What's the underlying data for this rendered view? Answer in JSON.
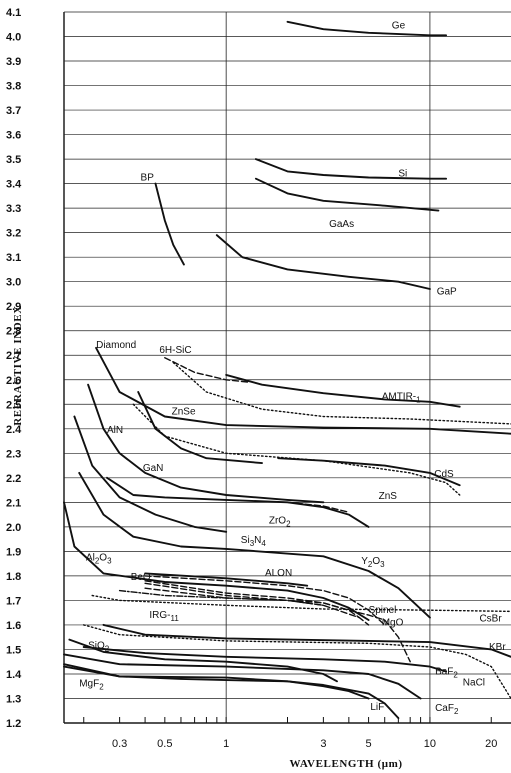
{
  "chart_data": {
    "type": "line",
    "title": "",
    "xlabel": "WAVELENGTH   (μm)",
    "ylabel": "REFRACTIVE   INDEX",
    "xscale": "log",
    "xlim": [
      0.16,
      25
    ],
    "ylim": [
      1.2,
      4.1
    ],
    "grid": "horizontal lines every 0.1, vertical lines at 1 and 10",
    "x_ticks": [
      {
        "value": 0.3,
        "label": "0.3"
      },
      {
        "value": 0.5,
        "label": "0.5"
      },
      {
        "value": 1,
        "label": "1"
      },
      {
        "value": 3,
        "label": "3"
      },
      {
        "value": 5,
        "label": "5"
      },
      {
        "value": 10,
        "label": "10"
      },
      {
        "value": 20,
        "label": "20"
      }
    ],
    "y_ticks": [
      "1.2",
      "1.3",
      "1.4",
      "1.5",
      "1.6",
      "1.7",
      "1.8",
      "1.9",
      "2.0",
      "2.1",
      "2.2",
      "2.3",
      "2.4",
      "2.5",
      "2.6",
      "2.7",
      "2.8",
      "2.9",
      "3.0",
      "3.1",
      "3.2",
      "3.3",
      "3.4",
      "3.5",
      "3.6",
      "3.7",
      "3.8",
      "3.9",
      "4.0",
      "4.1"
    ],
    "series": [
      {
        "name": "Ge",
        "style": "solid",
        "points": [
          [
            2,
            4.06
          ],
          [
            3,
            4.03
          ],
          [
            5,
            4.015
          ],
          [
            10,
            4.005
          ],
          [
            12,
            4.005
          ]
        ]
      },
      {
        "name": "Si",
        "style": "solid",
        "points": [
          [
            1.4,
            3.5
          ],
          [
            2,
            3.45
          ],
          [
            3,
            3.435
          ],
          [
            5,
            3.425
          ],
          [
            10,
            3.42
          ],
          [
            12,
            3.42
          ]
        ]
      },
      {
        "name": "GaAs",
        "style": "solid",
        "points": [
          [
            1.4,
            3.42
          ],
          [
            2,
            3.36
          ],
          [
            3,
            3.33
          ],
          [
            6,
            3.31
          ],
          [
            11,
            3.29
          ]
        ]
      },
      {
        "name": "BP",
        "style": "solid",
        "points": [
          [
            0.45,
            3.4
          ],
          [
            0.5,
            3.25
          ],
          [
            0.55,
            3.15
          ],
          [
            0.62,
            3.07
          ]
        ]
      },
      {
        "name": "GaP",
        "style": "solid",
        "points": [
          [
            0.9,
            3.19
          ],
          [
            1.2,
            3.1
          ],
          [
            2,
            3.05
          ],
          [
            4,
            3.02
          ],
          [
            7,
            3.0
          ],
          [
            10,
            2.97
          ]
        ]
      },
      {
        "name": "Diamond",
        "style": "solid",
        "points": [
          [
            0.23,
            2.73
          ],
          [
            0.3,
            2.55
          ],
          [
            0.5,
            2.45
          ],
          [
            1,
            2.415
          ],
          [
            3,
            2.405
          ],
          [
            10,
            2.4
          ],
          [
            25,
            2.38
          ]
        ]
      },
      {
        "name": "6H-SiC",
        "style": "dashed",
        "points": [
          [
            0.5,
            2.69
          ],
          [
            0.7,
            2.63
          ],
          [
            1,
            2.6
          ],
          [
            1.3,
            2.59
          ]
        ]
      },
      {
        "name": "ZnSe",
        "style": "dotted",
        "points": [
          [
            0.55,
            2.67
          ],
          [
            0.8,
            2.55
          ],
          [
            1.5,
            2.48
          ],
          [
            3,
            2.45
          ],
          [
            8,
            2.44
          ],
          [
            25,
            2.42
          ]
        ]
      },
      {
        "name": "AMTIR-1",
        "style": "solid",
        "points": [
          [
            1,
            2.62
          ],
          [
            1.5,
            2.58
          ],
          [
            3,
            2.545
          ],
          [
            6,
            2.52
          ],
          [
            10,
            2.51
          ],
          [
            14,
            2.49
          ]
        ]
      },
      {
        "name": "AlN",
        "style": "solid",
        "points": [
          [
            0.21,
            2.58
          ],
          [
            0.25,
            2.4
          ],
          [
            0.3,
            2.3
          ],
          [
            0.4,
            2.22
          ],
          [
            0.6,
            2.16
          ],
          [
            1,
            2.13
          ],
          [
            2,
            2.11
          ],
          [
            3,
            2.1
          ]
        ]
      },
      {
        "name": "GaN",
        "style": "solid",
        "points": [
          [
            0.37,
            2.55
          ],
          [
            0.45,
            2.4
          ],
          [
            0.6,
            2.32
          ],
          [
            0.8,
            2.28
          ],
          [
            1.5,
            2.26
          ]
        ]
      },
      {
        "name": "ZnS",
        "style": "dotted",
        "points": [
          [
            0.35,
            2.5
          ],
          [
            0.5,
            2.37
          ],
          [
            1,
            2.3
          ],
          [
            3,
            2.27
          ],
          [
            8,
            2.22
          ],
          [
            12,
            2.18
          ],
          [
            14,
            2.13
          ]
        ]
      },
      {
        "name": "CdS",
        "style": "solid",
        "points": [
          [
            1.8,
            2.28
          ],
          [
            3,
            2.27
          ],
          [
            6,
            2.25
          ],
          [
            10,
            2.22
          ],
          [
            14,
            2.17
          ]
        ]
      },
      {
        "name": "ZrO2",
        "style": "solid",
        "points": [
          [
            0.26,
            2.2
          ],
          [
            0.35,
            2.13
          ],
          [
            0.5,
            2.12
          ],
          [
            1,
            2.11
          ],
          [
            2,
            2.1
          ],
          [
            3,
            2.08
          ],
          [
            4,
            2.05
          ],
          [
            5,
            2.0
          ]
        ]
      },
      {
        "name": "ZrO2 (dashed)",
        "style": "dashed",
        "points": [
          [
            2,
            2.1
          ],
          [
            3,
            2.085
          ],
          [
            4,
            2.06
          ]
        ]
      },
      {
        "name": "Si3N4",
        "style": "solid",
        "points": [
          [
            0.18,
            2.45
          ],
          [
            0.22,
            2.25
          ],
          [
            0.3,
            2.12
          ],
          [
            0.45,
            2.05
          ],
          [
            0.7,
            2.0
          ],
          [
            1,
            1.98
          ]
        ]
      },
      {
        "name": "Y2O3",
        "style": "solid",
        "points": [
          [
            0.19,
            2.22
          ],
          [
            0.25,
            2.05
          ],
          [
            0.35,
            1.96
          ],
          [
            0.6,
            1.92
          ],
          [
            1,
            1.91
          ],
          [
            3,
            1.88
          ],
          [
            5,
            1.82
          ],
          [
            7,
            1.75
          ],
          [
            10,
            1.63
          ]
        ]
      },
      {
        "name": "Al2O3",
        "style": "solid",
        "points": [
          [
            0.16,
            2.1
          ],
          [
            0.18,
            1.92
          ],
          [
            0.25,
            1.81
          ],
          [
            0.5,
            1.775
          ],
          [
            1,
            1.76
          ],
          [
            2,
            1.74
          ],
          [
            3,
            1.71
          ],
          [
            4,
            1.67
          ],
          [
            5,
            1.62
          ]
        ]
      },
      {
        "name": "BeO",
        "style": "dashdot",
        "points": [
          [
            0.3,
            1.74
          ],
          [
            0.5,
            1.72
          ],
          [
            1,
            1.71
          ],
          [
            2,
            1.7
          ],
          [
            3,
            1.68
          ]
        ]
      },
      {
        "name": "ALON",
        "style": "solid",
        "points": [
          [
            0.4,
            1.81
          ],
          [
            1,
            1.79
          ],
          [
            2,
            1.77
          ],
          [
            2.5,
            1.76
          ]
        ]
      },
      {
        "name": "ALON (dashed)",
        "style": "dashed",
        "points": [
          [
            0.4,
            1.8
          ],
          [
            1,
            1.78
          ],
          [
            2,
            1.76
          ],
          [
            3,
            1.74
          ],
          [
            4,
            1.71
          ],
          [
            5,
            1.66
          ],
          [
            6,
            1.6
          ]
        ]
      },
      {
        "name": "Spinel",
        "style": "dashed",
        "points": [
          [
            0.4,
            1.75
          ],
          [
            1,
            1.71
          ],
          [
            2,
            1.7
          ],
          [
            3,
            1.68
          ],
          [
            4.5,
            1.63
          ],
          [
            5,
            1.6
          ]
        ]
      },
      {
        "name": "IRG-11",
        "style": "dashed",
        "points": [
          [
            0.4,
            1.77
          ],
          [
            1,
            1.72
          ],
          [
            2,
            1.7
          ],
          [
            3,
            1.69
          ],
          [
            4,
            1.66
          ],
          [
            4.5,
            1.63
          ]
        ]
      },
      {
        "name": "MgO",
        "style": "dashed",
        "points": [
          [
            0.4,
            1.78
          ],
          [
            1,
            1.73
          ],
          [
            2,
            1.71
          ],
          [
            3,
            1.69
          ],
          [
            4,
            1.66
          ],
          [
            5,
            1.64
          ],
          [
            6,
            1.62
          ],
          [
            7,
            1.55
          ],
          [
            8,
            1.45
          ]
        ]
      },
      {
        "name": "CsBr",
        "style": "dotted",
        "points": [
          [
            0.22,
            1.72
          ],
          [
            0.3,
            1.7
          ],
          [
            1,
            1.68
          ],
          [
            3,
            1.665
          ],
          [
            10,
            1.66
          ],
          [
            25,
            1.655
          ]
        ]
      },
      {
        "name": "KBr",
        "style": "solid",
        "points": [
          [
            0.25,
            1.6
          ],
          [
            0.4,
            1.56
          ],
          [
            1,
            1.545
          ],
          [
            5,
            1.535
          ],
          [
            10,
            1.53
          ],
          [
            20,
            1.5
          ],
          [
            25,
            1.47
          ]
        ]
      },
      {
        "name": "NaCl",
        "style": "dotted",
        "points": [
          [
            0.2,
            1.6
          ],
          [
            0.3,
            1.56
          ],
          [
            1,
            1.535
          ],
          [
            5,
            1.525
          ],
          [
            10,
            1.51
          ],
          [
            15,
            1.48
          ],
          [
            20,
            1.43
          ],
          [
            25,
            1.3
          ]
        ]
      },
      {
        "name": "SiO2",
        "style": "solid",
        "points": [
          [
            0.17,
            1.54
          ],
          [
            0.25,
            1.49
          ],
          [
            0.5,
            1.46
          ],
          [
            1,
            1.45
          ],
          [
            2,
            1.43
          ],
          [
            3,
            1.4
          ],
          [
            3.5,
            1.37
          ]
        ]
      },
      {
        "name": "BaF2",
        "style": "solid",
        "points": [
          [
            0.2,
            1.51
          ],
          [
            0.4,
            1.485
          ],
          [
            1,
            1.47
          ],
          [
            3,
            1.46
          ],
          [
            6,
            1.45
          ],
          [
            10,
            1.43
          ],
          [
            12,
            1.41
          ]
        ]
      },
      {
        "name": "CaF2",
        "style": "solid",
        "points": [
          [
            0.16,
            1.48
          ],
          [
            0.3,
            1.44
          ],
          [
            1,
            1.43
          ],
          [
            3,
            1.415
          ],
          [
            5,
            1.4
          ],
          [
            7,
            1.36
          ],
          [
            9,
            1.3
          ]
        ]
      },
      {
        "name": "MgF2",
        "style": "solid",
        "points": [
          [
            0.16,
            1.44
          ],
          [
            0.3,
            1.39
          ],
          [
            0.6,
            1.38
          ],
          [
            1,
            1.375
          ],
          [
            2,
            1.37
          ],
          [
            3,
            1.35
          ],
          [
            4,
            1.33
          ],
          [
            5,
            1.3
          ]
        ]
      },
      {
        "name": "LiF",
        "style": "solid",
        "points": [
          [
            0.16,
            1.43
          ],
          [
            0.3,
            1.39
          ],
          [
            1,
            1.385
          ],
          [
            2,
            1.37
          ],
          [
            3,
            1.355
          ],
          [
            5,
            1.32
          ],
          [
            6,
            1.28
          ],
          [
            7,
            1.22
          ]
        ]
      }
    ],
    "curve_labels": [
      {
        "text": "Ge",
        "x": 6.5,
        "y": 4.05
      },
      {
        "text": "Si",
        "x": 7,
        "y": 3.445
      },
      {
        "text": "GaAs",
        "x": 3.2,
        "y": 3.24
      },
      {
        "text": "BP",
        "x": 0.38,
        "y": 3.43
      },
      {
        "text": "GaP",
        "x": 10.8,
        "y": 2.965
      },
      {
        "text": "Diamond",
        "x": 0.23,
        "y": 2.745
      },
      {
        "text": "6H-SiC",
        "x": 0.47,
        "y": 2.725
      },
      {
        "text": "ZnSe",
        "x": 0.54,
        "y": 2.475
      },
      {
        "text": "AMTIR-1",
        "x": 5.8,
        "y": 2.535
      },
      {
        "text": "AlN",
        "x": 0.26,
        "y": 2.4
      },
      {
        "text": "GaN",
        "x": 0.39,
        "y": 2.245
      },
      {
        "text": "CdS",
        "x": 10.5,
        "y": 2.22
      },
      {
        "text": "ZnS",
        "x": 5.6,
        "y": 2.13
      },
      {
        "text": "ZrO2",
        "x": 1.62,
        "y": 2.03
      },
      {
        "text": "Si3N4",
        "x": 1.18,
        "y": 1.95
      },
      {
        "text": "Y2O3",
        "x": 4.6,
        "y": 1.865
      },
      {
        "text": "Al2O3",
        "x": 0.205,
        "y": 1.88
      },
      {
        "text": "BeO",
        "x": 0.34,
        "y": 1.8
      },
      {
        "text": "ALON",
        "x": 1.55,
        "y": 1.815
      },
      {
        "text": "Spinel",
        "x": 5.0,
        "y": 1.665
      },
      {
        "text": "IRG-11",
        "x": 0.42,
        "y": 1.645
      },
      {
        "text": "MgO",
        "x": 5.8,
        "y": 1.615
      },
      {
        "text": "CsBr",
        "x": 17.5,
        "y": 1.63
      },
      {
        "text": "KBr",
        "x": 19.5,
        "y": 1.515
      },
      {
        "text": "SiO2",
        "x": 0.21,
        "y": 1.52
      },
      {
        "text": "BaF2",
        "x": 10.6,
        "y": 1.415
      },
      {
        "text": "NaCl",
        "x": 14.5,
        "y": 1.37
      },
      {
        "text": "MgF2",
        "x": 0.19,
        "y": 1.365
      },
      {
        "text": "LiF",
        "x": 5.1,
        "y": 1.27
      },
      {
        "text": "CaF2",
        "x": 10.6,
        "y": 1.265
      }
    ]
  }
}
